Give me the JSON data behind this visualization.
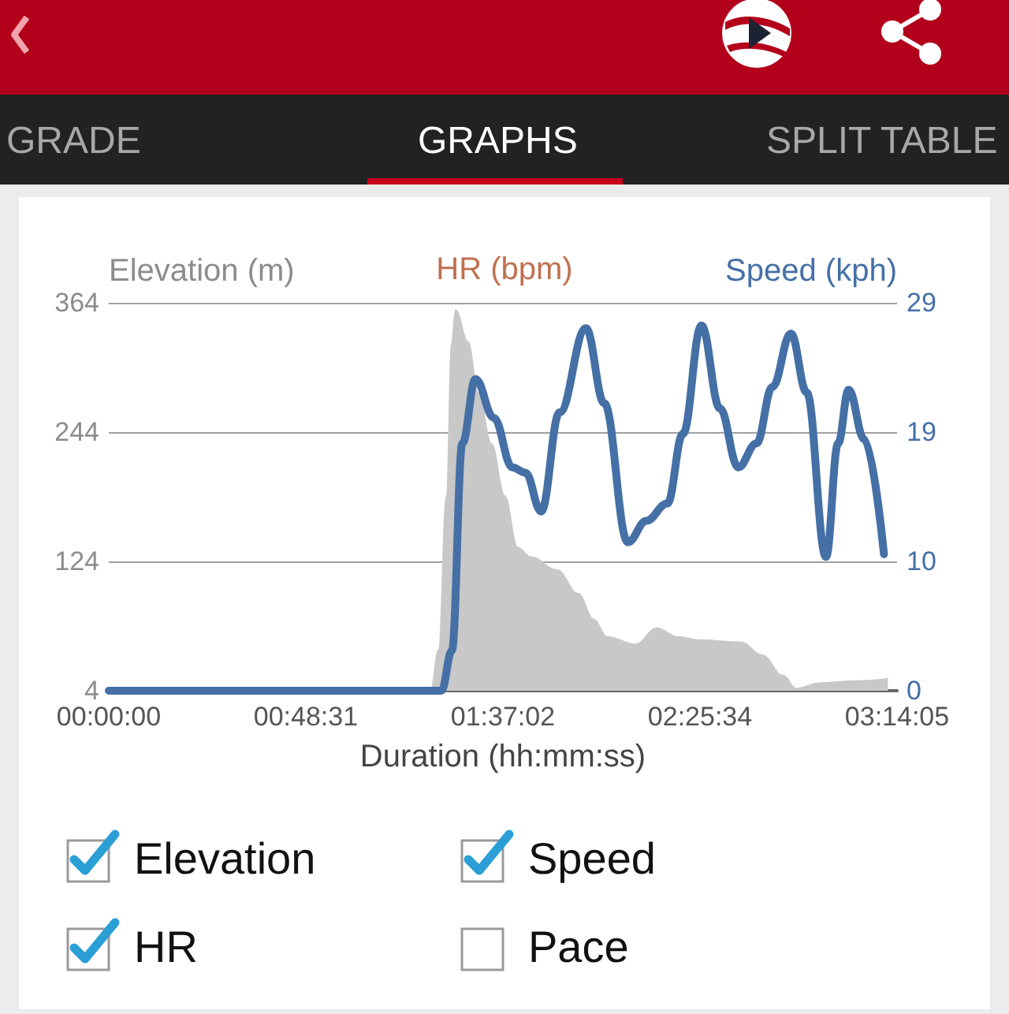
{
  "chart_data": {
    "type": "line",
    "ylabel": "Elevation (m)",
    "y2label": "Speed (kph)",
    "xlabel": "Duration (hh:mm:ss)",
    "xlim": [
      0,
      3.2347
    ],
    "xticks": [
      {
        "value": 0,
        "label": "00:00:00"
      },
      {
        "value": 0.8086,
        "label": "00:48:31"
      },
      {
        "value": 1.6172,
        "label": "01:37:02"
      },
      {
        "value": 2.4261,
        "label": "02:25:34"
      },
      {
        "value": 3.2347,
        "label": "03:14:05"
      }
    ],
    "ylim": [
      4,
      364
    ],
    "yticks": [
      4,
      124,
      244,
      364
    ],
    "y2lim": [
      0,
      29
    ],
    "y2ticks": [
      0,
      {
        "value": 9.667,
        "label": "10"
      },
      {
        "value": 19.333,
        "label": "19"
      },
      29
    ],
    "grid": "y",
    "marker": "none",
    "series": [
      {
        "type": "area",
        "color": "#c8c8c8",
        "x": [
          0,
          1.321,
          1.354,
          1.386,
          1.408,
          1.423,
          1.473,
          1.516,
          1.57,
          1.624,
          1.677,
          1.732,
          1.839,
          1.926,
          1.99,
          2.044,
          2.162,
          2.249,
          2.335,
          2.421,
          2.594,
          2.68,
          2.767,
          2.82,
          2.917,
          3.068,
          3.197
        ],
        "values": [
          4,
          4,
          42,
          185,
          328,
          357,
          328,
          280,
          233,
          185,
          137,
          128,
          116,
          94,
          70,
          54,
          47,
          62,
          54,
          51,
          49,
          37,
          18,
          6,
          11,
          13,
          15
        ]
      },
      {
        "axis": "y2",
        "color": "#4570a6",
        "x": [
          0,
          1.365,
          1.408,
          1.451,
          1.505,
          1.58,
          1.656,
          1.71,
          1.774,
          1.85,
          1.958,
          2.033,
          2.13,
          2.206,
          2.292,
          2.356,
          2.432,
          2.508,
          2.583,
          2.658,
          2.723,
          2.799,
          2.864,
          2.943,
          2.993,
          3.036,
          3.1,
          3.181
        ],
        "values": [
          0,
          0,
          3,
          18.5,
          23.3,
          20.4,
          16.7,
          16.3,
          13.4,
          20.8,
          27.1,
          21.5,
          11.1,
          12.7,
          14,
          19.2,
          27.3,
          21.1,
          16.7,
          18.5,
          22.7,
          26.7,
          22.3,
          10,
          18.5,
          22.5,
          18.8,
          10.2
        ]
      },
      {
        "name": "HR (bpm)",
        "color": "#c0714f"
      }
    ],
    "annotations": [
      "GRADE",
      "GRAPHS",
      "SPLIT TABLE",
      "Elevation",
      "Speed",
      "HR",
      "Pace"
    ]
  }
}
